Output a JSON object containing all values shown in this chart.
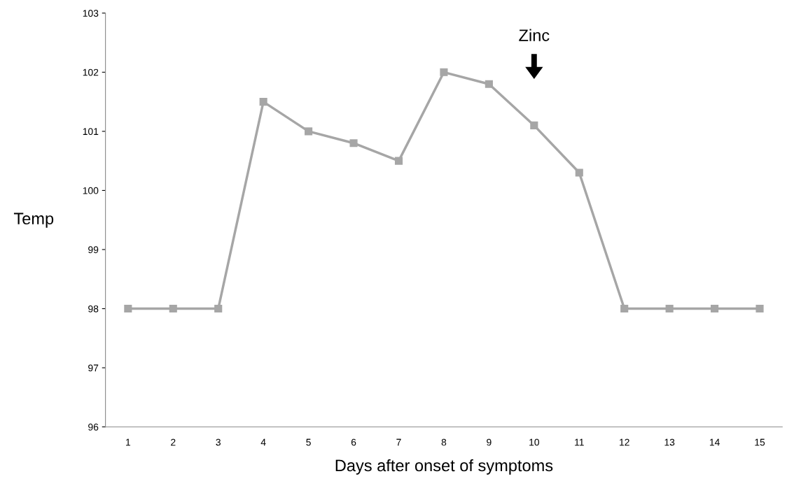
{
  "chart_data": {
    "type": "line",
    "categories": [
      "1",
      "2",
      "3",
      "4",
      "5",
      "6",
      "7",
      "8",
      "9",
      "10",
      "11",
      "12",
      "13",
      "14",
      "15"
    ],
    "series": [
      {
        "color": "#a6a6a6",
        "values": [
          98,
          98,
          98,
          101.5,
          101.0,
          100.8,
          100.5,
          102.0,
          101.8,
          101.1,
          100.3,
          98,
          98,
          98,
          98
        ]
      }
    ],
    "ylabel": "Temp",
    "xlabel": "Days after onset of symptoms",
    "ylim": [
      96,
      103
    ],
    "yticks": [
      96,
      97,
      98,
      99,
      100,
      101,
      102,
      103
    ],
    "marker": "square",
    "line_style": "solid",
    "grid": false,
    "legend": false,
    "annotations": [
      "Zinc"
    ]
  }
}
